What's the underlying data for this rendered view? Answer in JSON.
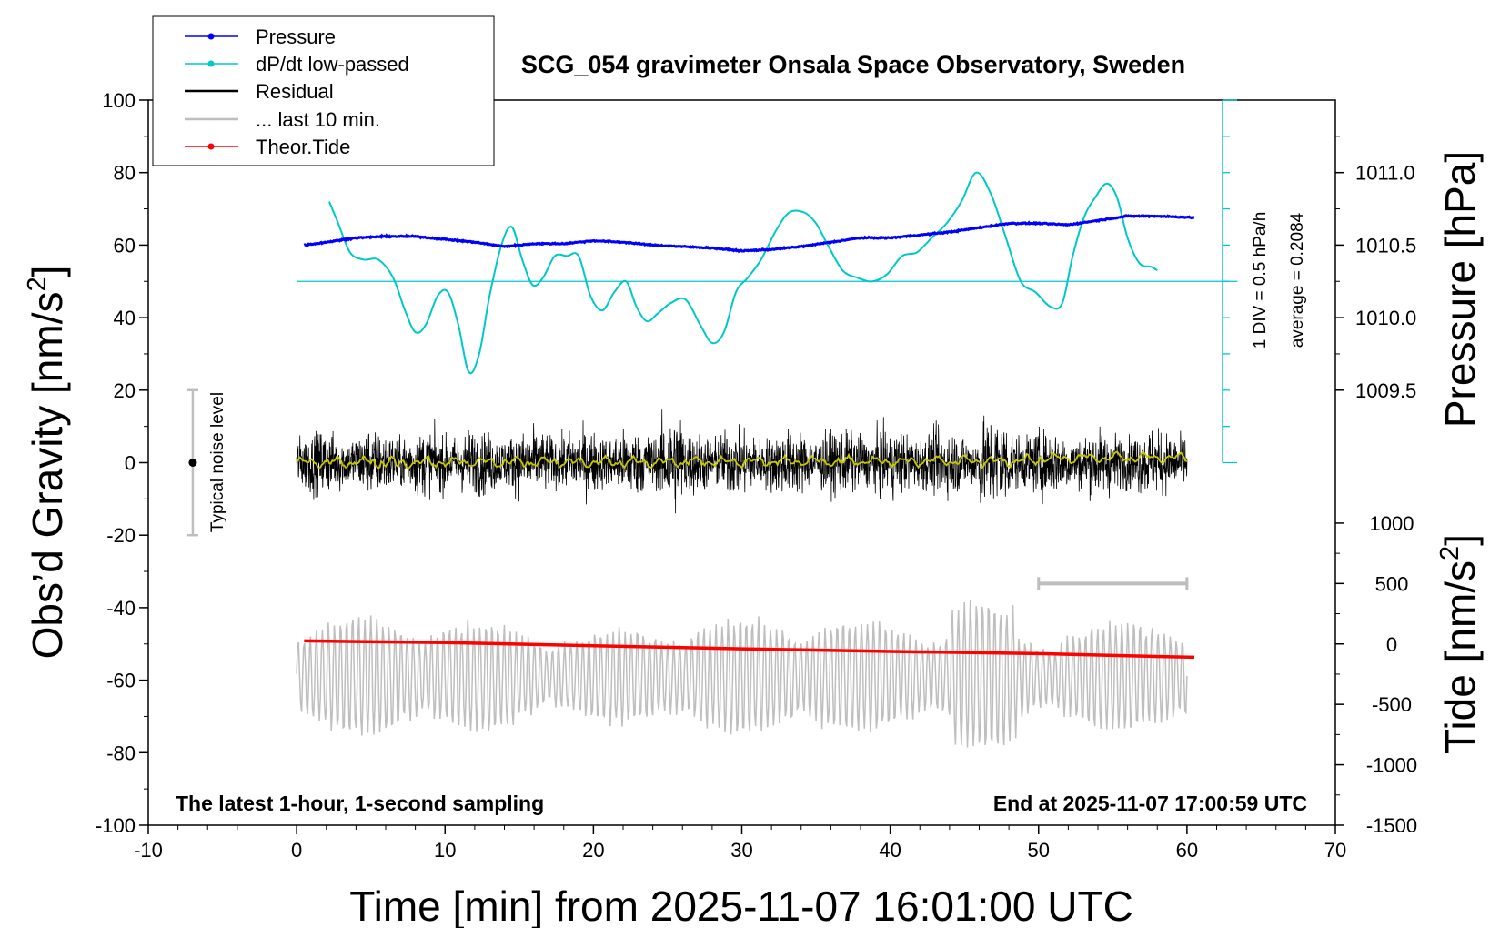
{
  "chart_data": {
    "type": "line",
    "title": "SCG_054 gravimeter Onsala Space Observatory, Sweden",
    "xlabel": "Time [min] from 2025-11-07 16:01:00 UTC",
    "ylabel_left_main": "Obs’d Gravity [nm/s",
    "ylabel_left_sup": "2",
    "ylabel_left_end": "]",
    "ylabel_right_top": "Pressure [hPa]",
    "ylabel_right_bottom_main": "Tide [nm/s",
    "ylabel_right_bottom_sup": "2",
    "ylabel_right_bottom_end": "]",
    "xlim": [
      -10,
      70
    ],
    "ylim_left": [
      -100,
      100
    ],
    "xticks": [
      "-10",
      "0",
      "10",
      "20",
      "30",
      "40",
      "50",
      "60",
      "70"
    ],
    "yticks_left": [
      "-100",
      "-80",
      "-60",
      "-40",
      "-20",
      "0",
      "20",
      "40",
      "60",
      "80",
      "100"
    ],
    "pressure_ticks": [
      "1009.5",
      "1010.0",
      "1010.5",
      "1011.0"
    ],
    "pressure_tick_values": [
      1009.5,
      1010.0,
      1010.5,
      1011.0
    ],
    "tide_ticks": [
      "-1500",
      "-1000",
      "-500",
      "0",
      "500",
      "1000"
    ],
    "tide_tick_values": [
      -1500,
      -1000,
      -500,
      0,
      500,
      1000
    ],
    "annotation_bottom_left": "The latest 1-hour, 1-second sampling",
    "annotation_bottom_right": "End at 2025-11-07 17:00:59 UTC",
    "noise_label": "Typical noise level",
    "noise_range": [
      -20,
      20
    ],
    "dpdt_scale_label": "1 DIV = 0.5 hPa/h",
    "dpdt_average_label": "average = 0.2084",
    "legend": [
      {
        "label": "Pressure",
        "color": "#0000ff",
        "marker": true
      },
      {
        "label": "dP/dt low-passed",
        "color": "#00c8c8",
        "marker": true
      },
      {
        "label": "Residual",
        "color": "#000000",
        "marker": false
      },
      {
        "label": "... last 10 min.",
        "color": "#bebebe",
        "marker": false
      },
      {
        "label": "Theor.Tide",
        "color": "#ff0000",
        "marker": true
      }
    ],
    "series": [
      {
        "name": "Pressure",
        "color": "#0000ff",
        "unit": "hPa",
        "x": [
          0.5,
          2,
          4,
          6,
          8,
          10,
          12,
          14,
          16,
          18,
          20,
          22,
          24,
          26,
          28,
          30,
          32,
          34,
          36,
          38,
          40,
          42,
          44,
          46,
          48,
          50,
          52,
          54,
          56,
          58,
          60.5
        ],
        "y": [
          1010.5,
          1010.52,
          1010.55,
          1010.56,
          1010.56,
          1010.54,
          1010.52,
          1010.49,
          1010.51,
          1010.51,
          1010.53,
          1010.52,
          1010.5,
          1010.49,
          1010.48,
          1010.46,
          1010.47,
          1010.49,
          1010.52,
          1010.55,
          1010.55,
          1010.57,
          1010.59,
          1010.62,
          1010.65,
          1010.65,
          1010.64,
          1010.67,
          1010.7,
          1010.7,
          1010.69
        ]
      },
      {
        "name": "dP/dt low-passed",
        "color": "#00c8c8",
        "unit": "nm/s2 (display)",
        "x": [
          2.2,
          2.8,
          3.6,
          4.5,
          5.5,
          6.5,
          7.3,
          8.0,
          8.7,
          9.5,
          10.2,
          10.9,
          11.6,
          12.3,
          13.0,
          13.8,
          14.5,
          15.2,
          15.9,
          16.6,
          17.4,
          18.2,
          19.0,
          19.8,
          20.6,
          21.4,
          22.2,
          22.9,
          23.6,
          24.3,
          25.2,
          26.2,
          27.2,
          28.0,
          28.8,
          29.6,
          30.4,
          31.3,
          32.3,
          33.2,
          34.2,
          35.0,
          35.8,
          36.8,
          37.8,
          38.8,
          39.8,
          40.8,
          41.8,
          42.8,
          43.8,
          44.8,
          45.8,
          46.8,
          47.8,
          48.8,
          49.8,
          50.8,
          51.6,
          52.3,
          53.1,
          53.8,
          54.6,
          55.3,
          56.0,
          56.8,
          57.6,
          58.0
        ],
        "y": [
          72,
          66,
          58,
          56,
          56,
          51,
          42,
          36,
          38,
          46,
          47,
          38,
          25,
          30,
          46,
          60,
          65,
          56,
          49,
          51,
          57,
          57,
          57,
          46,
          42,
          47,
          50,
          43,
          39,
          41,
          44,
          45,
          38,
          33,
          36,
          47,
          51,
          56,
          64,
          69,
          69,
          66,
          60,
          53,
          51,
          50,
          52,
          57,
          58,
          62,
          66,
          72,
          80,
          74,
          62,
          50,
          47,
          43,
          44,
          57,
          68,
          73,
          77,
          73,
          62,
          55,
          54,
          53
        ]
      },
      {
        "name": "Residual",
        "color": "#000000",
        "unit": "nm/s2",
        "x_range": [
          0,
          60
        ],
        "y_range": [
          -22,
          26
        ]
      },
      {
        "name": "... last 10 min.",
        "color": "#bebebe",
        "unit": "nm/s2",
        "x_range": [
          0,
          60
        ],
        "y_range": [
          -82,
          -36
        ]
      },
      {
        "name": "Theor.Tide",
        "color": "#ff0000",
        "unit": "nm/s2",
        "x": [
          0.5,
          10,
          20,
          30,
          40,
          50,
          55,
          60.5
        ],
        "y": [
          25,
          12,
          -15,
          -40,
          -62,
          -80,
          -95,
          -110
        ]
      }
    ]
  }
}
